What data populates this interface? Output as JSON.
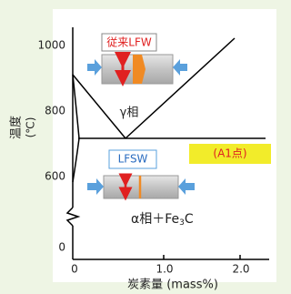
{
  "y_axis": {
    "label": "温度",
    "unit": "(℃)",
    "ticks": [
      "1000",
      "800",
      "600",
      "0"
    ]
  },
  "x_axis": {
    "label": "炭素量 (mass%)",
    "ticks": [
      "0",
      "1.0",
      "2.0"
    ]
  },
  "labels": {
    "conventional": "従来LFW",
    "gamma": "γ相",
    "a1": "(A1点)",
    "lfsw": "LFSW",
    "alpha_main": "α相＋Fe",
    "alpha_sub": "3",
    "alpha_end": "C"
  }
}
